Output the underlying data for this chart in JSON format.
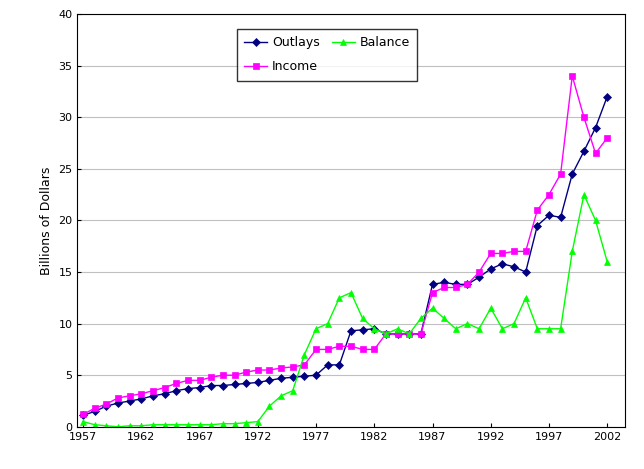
{
  "ylabel": "Billions of Dollars",
  "xlim": [
    1956.5,
    2003.5
  ],
  "ylim": [
    0,
    40
  ],
  "yticks": [
    0,
    5,
    10,
    15,
    20,
    25,
    30,
    35,
    40
  ],
  "xticks": [
    1957,
    1962,
    1967,
    1972,
    1977,
    1982,
    1987,
    1992,
    1997,
    2002
  ],
  "outlays": {
    "years": [
      1957,
      1958,
      1959,
      1960,
      1961,
      1962,
      1963,
      1964,
      1965,
      1966,
      1967,
      1968,
      1969,
      1970,
      1971,
      1972,
      1973,
      1974,
      1975,
      1976,
      1977,
      1978,
      1979,
      1980,
      1981,
      1982,
      1983,
      1984,
      1985,
      1986,
      1987,
      1988,
      1989,
      1990,
      1991,
      1992,
      1993,
      1994,
      1995,
      1996,
      1997,
      1998,
      1999,
      2000,
      2001,
      2002
    ],
    "values": [
      1.1,
      1.5,
      2.0,
      2.3,
      2.5,
      2.7,
      3.0,
      3.2,
      3.5,
      3.7,
      3.8,
      4.0,
      4.0,
      4.1,
      4.2,
      4.3,
      4.5,
      4.7,
      4.8,
      4.9,
      5.0,
      6.0,
      6.0,
      9.3,
      9.4,
      9.5,
      9.0,
      9.0,
      9.0,
      9.0,
      13.8,
      14.0,
      13.8,
      13.8,
      14.5,
      15.3,
      15.8,
      15.5,
      15.0,
      19.5,
      20.5,
      20.3,
      24.5,
      26.7,
      29.0,
      32.0
    ],
    "color": "#000080",
    "marker": "D"
  },
  "income": {
    "years": [
      1957,
      1958,
      1959,
      1960,
      1961,
      1962,
      1963,
      1964,
      1965,
      1966,
      1967,
      1968,
      1969,
      1970,
      1971,
      1972,
      1973,
      1974,
      1975,
      1976,
      1977,
      1978,
      1979,
      1980,
      1981,
      1982,
      1983,
      1984,
      1985,
      1986,
      1987,
      1988,
      1989,
      1990,
      1991,
      1992,
      1993,
      1994,
      1995,
      1996,
      1997,
      1998,
      1999,
      2000,
      2001,
      2002
    ],
    "values": [
      1.2,
      1.8,
      2.2,
      2.8,
      3.0,
      3.2,
      3.5,
      3.8,
      4.2,
      4.5,
      4.5,
      4.8,
      5.0,
      5.0,
      5.3,
      5.5,
      5.5,
      5.7,
      5.8,
      6.0,
      7.5,
      7.5,
      7.8,
      7.8,
      7.5,
      7.5,
      9.0,
      9.0,
      9.0,
      9.0,
      13.0,
      13.5,
      13.5,
      13.8,
      15.0,
      16.8,
      16.8,
      17.0,
      17.0,
      21.0,
      22.5,
      24.5,
      34.0,
      30.0,
      26.5,
      28.0
    ],
    "color": "#FF00FF",
    "marker": "s"
  },
  "balance": {
    "years": [
      1957,
      1958,
      1959,
      1960,
      1961,
      1962,
      1963,
      1964,
      1965,
      1966,
      1967,
      1968,
      1969,
      1970,
      1971,
      1972,
      1973,
      1974,
      1975,
      1976,
      1977,
      1978,
      1979,
      1980,
      1981,
      1982,
      1983,
      1984,
      1985,
      1986,
      1987,
      1988,
      1989,
      1990,
      1991,
      1992,
      1993,
      1994,
      1995,
      1996,
      1997,
      1998,
      1999,
      2000,
      2001,
      2002
    ],
    "values": [
      0.5,
      0.2,
      0.1,
      0.0,
      0.1,
      0.1,
      0.2,
      0.2,
      0.2,
      0.2,
      0.2,
      0.2,
      0.3,
      0.3,
      0.4,
      0.5,
      2.0,
      3.0,
      3.5,
      7.0,
      9.5,
      10.0,
      12.5,
      13.0,
      10.5,
      9.5,
      9.0,
      9.5,
      9.0,
      10.5,
      11.5,
      10.5,
      9.5,
      10.0,
      9.5,
      11.5,
      9.5,
      10.0,
      12.5,
      9.5,
      9.5,
      9.5,
      17.0,
      22.5,
      20.0,
      16.0
    ],
    "color": "#00FF00",
    "marker": "^"
  },
  "background_color": "#FFFFFF",
  "grid_color": "#C0C0C0",
  "figsize": [
    6.44,
    4.69
  ],
  "dpi": 100
}
